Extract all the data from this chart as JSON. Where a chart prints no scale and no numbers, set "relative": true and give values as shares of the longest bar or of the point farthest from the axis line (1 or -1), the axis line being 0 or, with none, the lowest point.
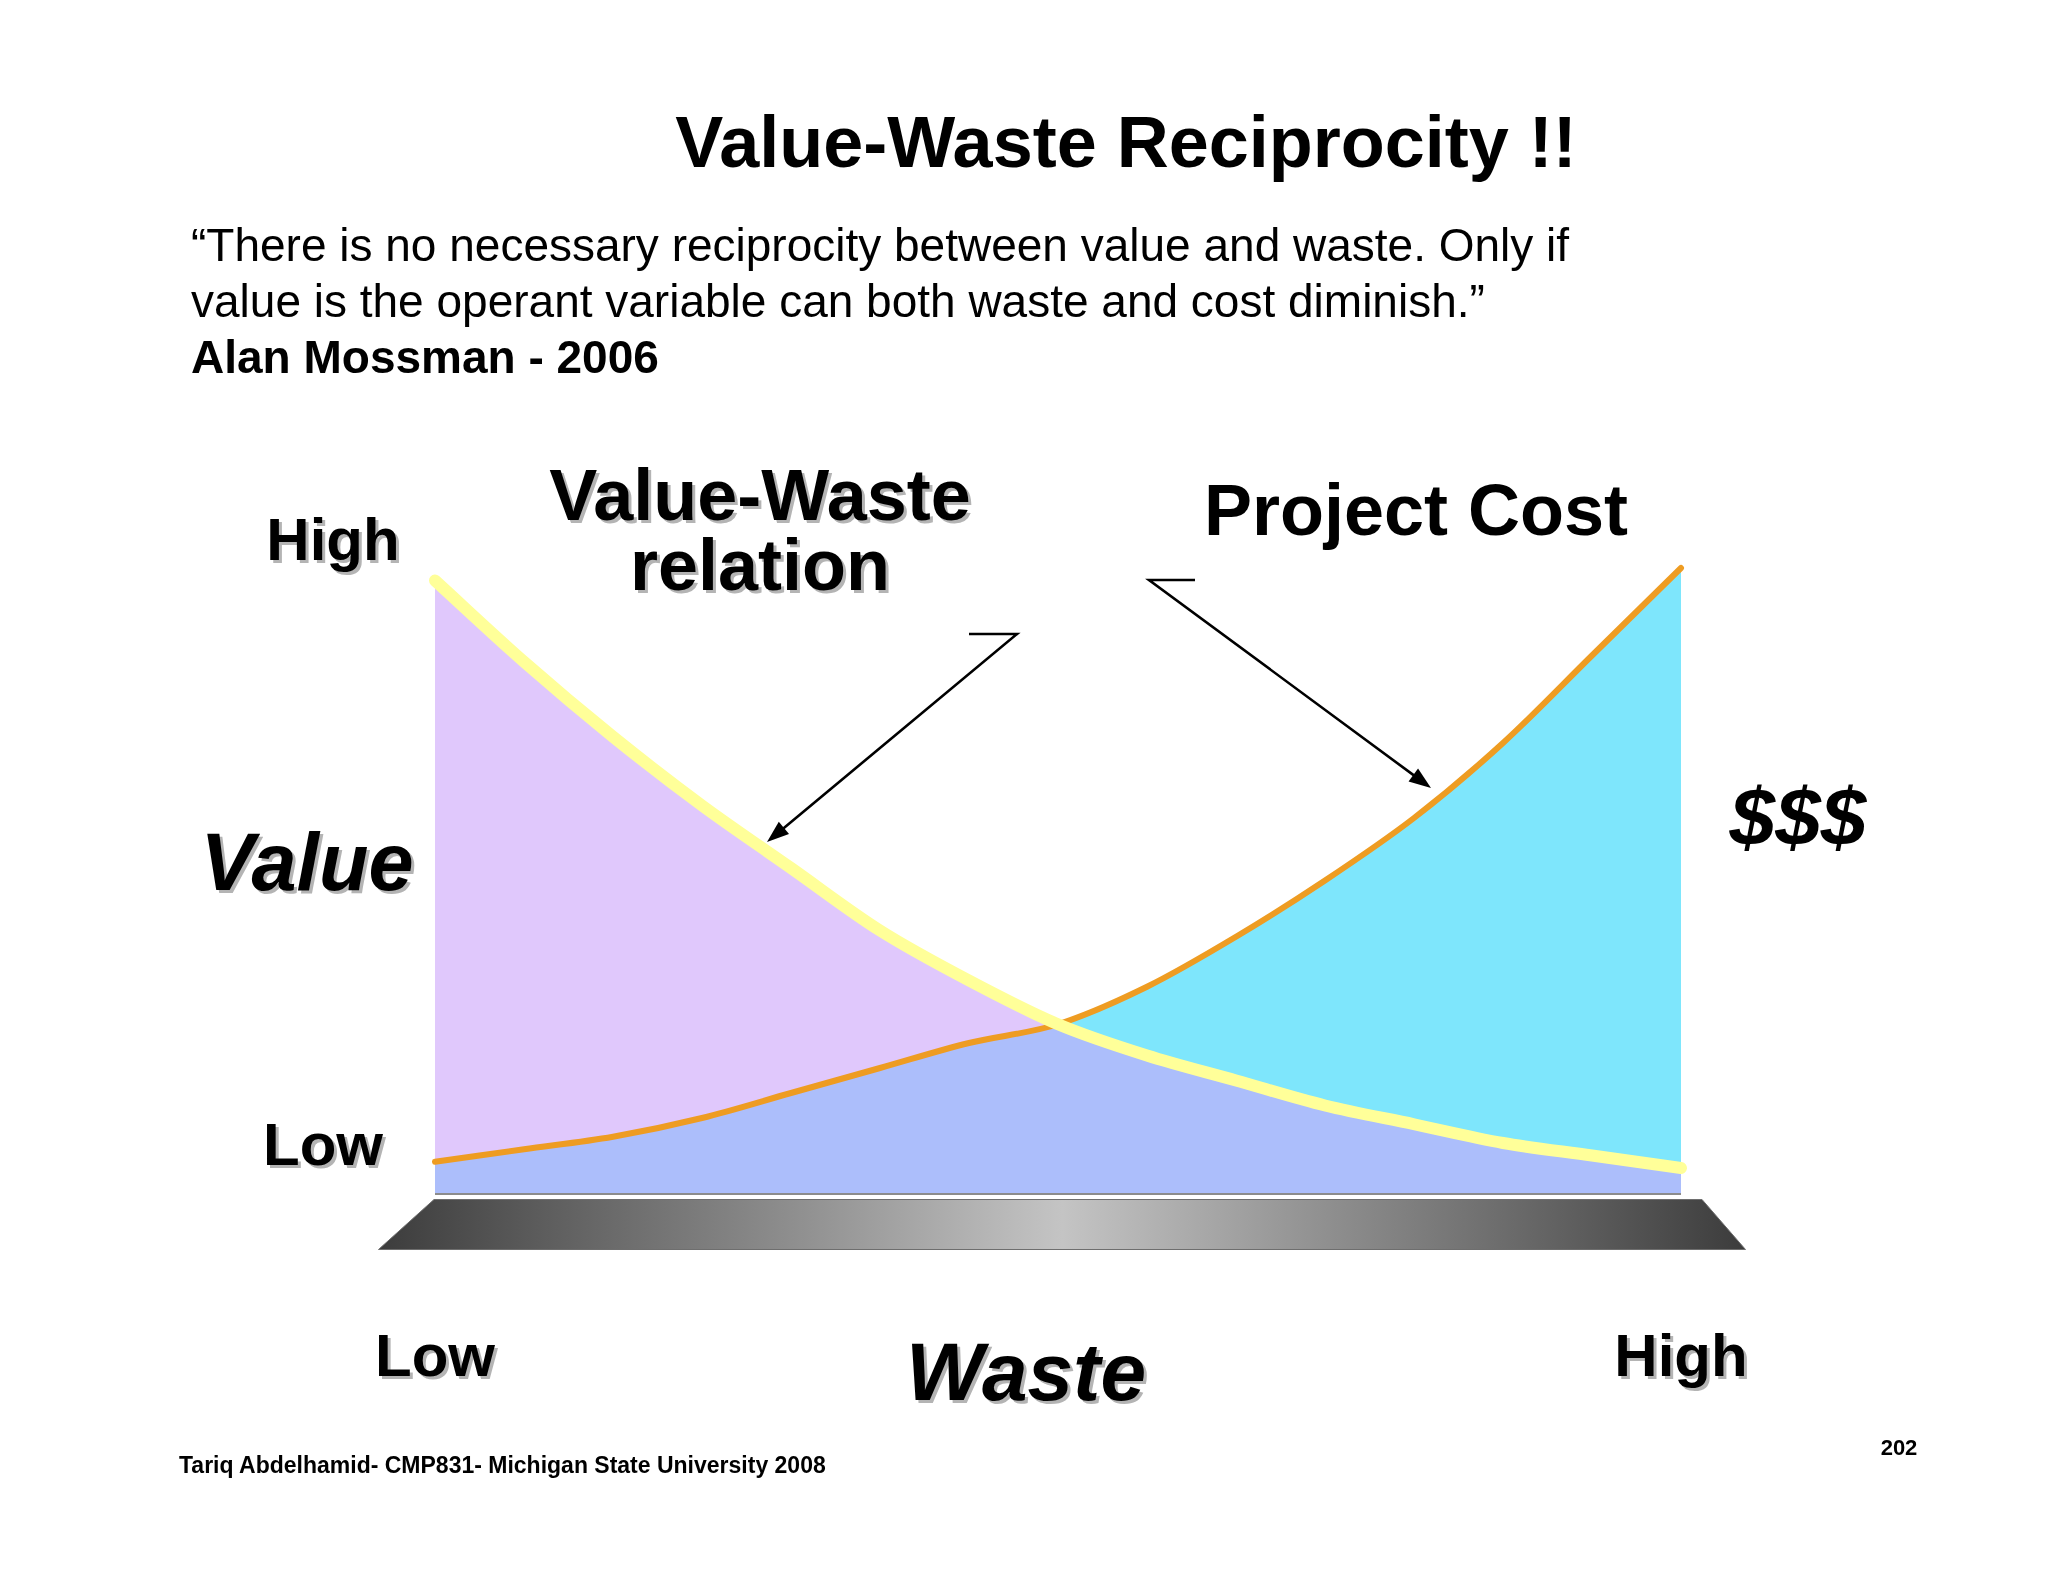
{
  "chart_data": {
    "type": "area",
    "title": "Value-Waste Reciprocity !!",
    "subtitle": "“There is no necessary reciprocity between value and waste. Only if value is the operant variable can both waste and cost diminish.”",
    "xlabel": "Waste",
    "ylabel": "Value",
    "y2label": "$$$",
    "annotations": [
      "Alan Mossman - 2006",
      "High",
      "Low",
      "Tariq Abdelhamid- CMP831- Michigan State University 2008",
      "202"
    ],
    "relative": true,
    "categories": [
      "Low",
      null,
      null,
      null,
      null,
      null,
      null,
      null,
      null,
      null,
      null,
      null,
      null,
      null,
      "High"
    ],
    "series": [
      {
        "name": "Value-Waste relation",
        "type": "line",
        "color": "#ffff99",
        "values": [
          0.98,
          0.85,
          0.73,
          0.62,
          0.52,
          0.42,
          0.34,
          0.27,
          0.22,
          0.18,
          0.14,
          0.11,
          0.08,
          0.06,
          0.04
        ]
      },
      {
        "color": "#e0c8fc",
        "values": [
          0.98,
          0.85,
          0.73,
          0.62,
          0.52,
          0.42,
          0.34,
          0.27,
          0.22,
          0.18,
          0.14,
          0.11,
          0.08,
          0.06,
          0.04
        ]
      },
      {
        "name": "Project Cost",
        "type": "line",
        "color": "#ee9c22",
        "values": [
          0.05,
          0.07,
          0.09,
          0.12,
          0.16,
          0.2,
          0.24,
          0.27,
          0.33,
          0.41,
          0.5,
          0.6,
          0.72,
          0.86,
          1
        ]
      },
      {
        "color": "#7ee6fc",
        "values": [
          0.05,
          0.07,
          0.09,
          0.12,
          0.16,
          0.2,
          0.24,
          0.27,
          0.33,
          0.41,
          0.5,
          0.6,
          0.72,
          0.86,
          1
        ]
      }
    ]
  }
}
